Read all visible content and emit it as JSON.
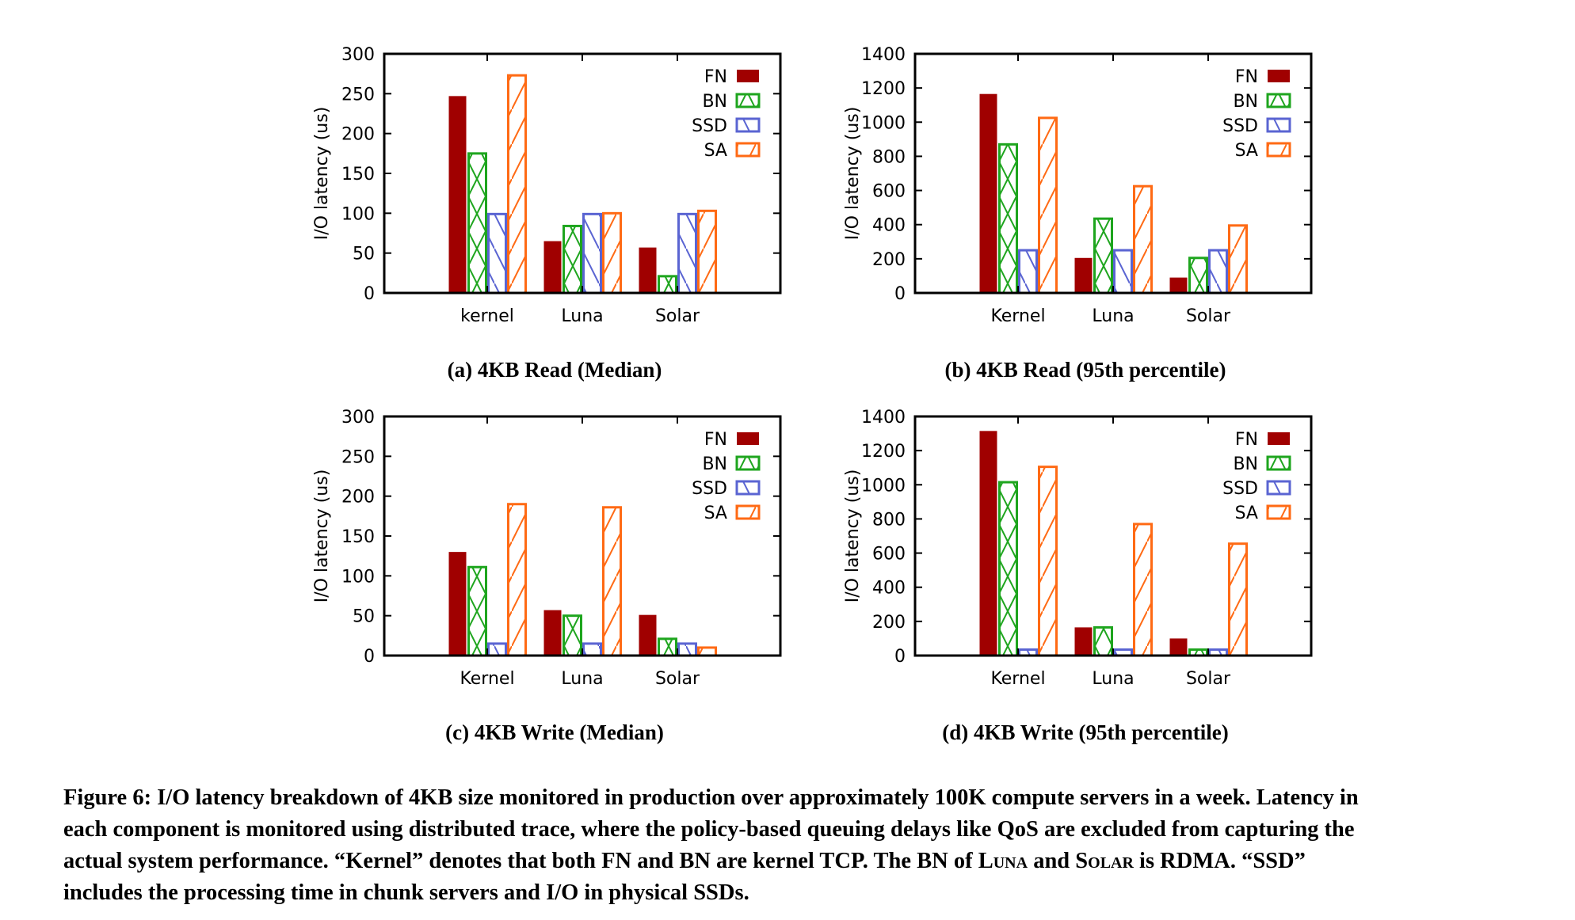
{
  "colors": {
    "FN": "#a00000",
    "BN": "#1ea51e",
    "SSD": "#5a64d2",
    "SA": "#ff6a14"
  },
  "chart_data": [
    {
      "type": "bar",
      "caption": "(a) 4KB Read (Median)",
      "ylabel": "I/O latency (us)",
      "categories": [
        "kernel",
        "Luna",
        "Solar"
      ],
      "ylim": [
        0,
        300
      ],
      "yticks": [
        "0",
        "50",
        "100",
        "150",
        "200",
        "250",
        "300"
      ],
      "legend_position": "top-right",
      "series": [
        {
          "name": "FN",
          "values": [
            247,
            65,
            57
          ]
        },
        {
          "name": "BN",
          "values": [
            175,
            84,
            21
          ]
        },
        {
          "name": "SSD",
          "values": [
            99,
            99,
            99
          ]
        },
        {
          "name": "SA",
          "values": [
            273,
            100,
            103
          ]
        }
      ]
    },
    {
      "type": "bar",
      "caption": "(b) 4KB Read (95th percentile)",
      "ylabel": "I/O latency (us)",
      "categories": [
        "Kernel",
        "Luna",
        "Solar"
      ],
      "ylim": [
        0,
        1400
      ],
      "yticks": [
        "0",
        "200",
        "400",
        "600",
        "800",
        "1000",
        "1200",
        "1400"
      ],
      "legend_position": "top-right",
      "series": [
        {
          "name": "FN",
          "values": [
            1165,
            205,
            90
          ]
        },
        {
          "name": "BN",
          "values": [
            870,
            435,
            205
          ]
        },
        {
          "name": "SSD",
          "values": [
            250,
            250,
            250
          ]
        },
        {
          "name": "SA",
          "values": [
            1025,
            625,
            395
          ]
        }
      ]
    },
    {
      "type": "bar",
      "caption": "(c) 4KB Write (Median)",
      "ylabel": "I/O latency (us)",
      "categories": [
        "Kernel",
        "Luna",
        "Solar"
      ],
      "ylim": [
        0,
        300
      ],
      "yticks": [
        "0",
        "50",
        "100",
        "150",
        "200",
        "250",
        "300"
      ],
      "legend_position": "top-right",
      "series": [
        {
          "name": "FN",
          "values": [
            130,
            57,
            51
          ]
        },
        {
          "name": "BN",
          "values": [
            111,
            50,
            21
          ]
        },
        {
          "name": "SSD",
          "values": [
            15,
            15,
            15
          ]
        },
        {
          "name": "SA",
          "values": [
            190,
            186,
            10
          ]
        }
      ]
    },
    {
      "type": "bar",
      "caption": "(d) 4KB Write (95th percentile)",
      "ylabel": "I/O latency (us)",
      "categories": [
        "Kernel",
        "Luna",
        "Solar"
      ],
      "ylim": [
        0,
        1400
      ],
      "yticks": [
        "0",
        "200",
        "400",
        "600",
        "800",
        "1000",
        "1200",
        "1400"
      ],
      "legend_position": "top-right",
      "series": [
        {
          "name": "FN",
          "values": [
            1315,
            165,
            100
          ]
        },
        {
          "name": "BN",
          "values": [
            1015,
            165,
            35
          ]
        },
        {
          "name": "SSD",
          "values": [
            35,
            35,
            35
          ]
        },
        {
          "name": "SA",
          "values": [
            1105,
            770,
            655
          ]
        }
      ]
    }
  ],
  "figure_caption": {
    "line1": "Figure 6: I/O latency breakdown of 4KB size monitored in production over approximately 100K compute servers in a week. Latency in",
    "line2": "each component is monitored using distributed trace, where the policy-based queuing delays like QoS are excluded from capturing the",
    "line3_a": "actual system performance. “Kernel” denotes that both FN and BN are kernel TCP. The BN of ",
    "line3_luna": "Luna",
    "line3_and": " and ",
    "line3_solar": "Solar",
    "line3_b": " is RDMA. “SSD”",
    "line4": "includes the processing time in chunk servers and I/O in physical SSDs."
  }
}
